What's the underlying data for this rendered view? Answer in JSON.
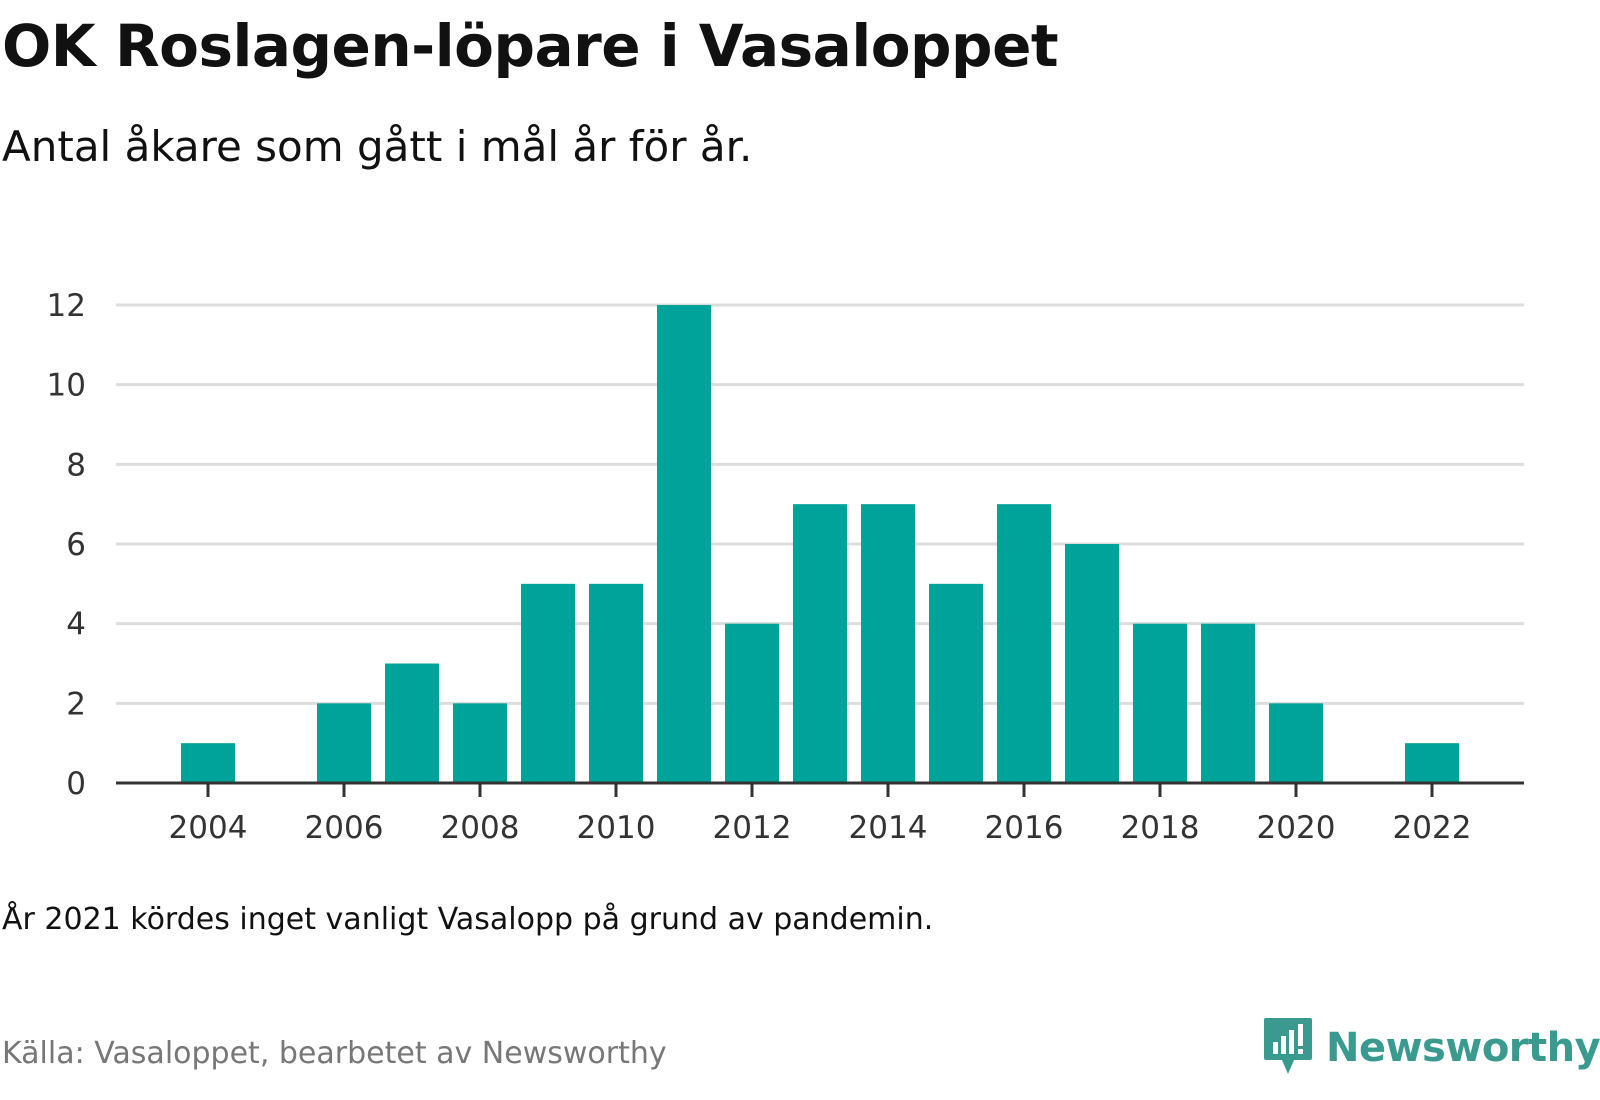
{
  "header": {
    "title": "OK Roslagen-löpare i Vasaloppet",
    "subtitle": "Antal åkare som gått i mål år för år."
  },
  "footer": {
    "note": "År 2021 kördes inget vanligt Vasalopp på grund av pandemin.",
    "source": "Källa: Vasaloppet, bearbetet av Newsworthy",
    "brand": "Newsworthy"
  },
  "icons": {
    "brand_logo": "newsworthy-logo-icon"
  },
  "colors": {
    "bar": "#00a39a",
    "grid": "#dddddd",
    "axis": "#333333",
    "brand": "#3a9a90",
    "source": "#777777"
  },
  "chart_data": {
    "type": "bar",
    "categories": [
      2004,
      2005,
      2006,
      2007,
      2008,
      2009,
      2010,
      2011,
      2012,
      2013,
      2014,
      2015,
      2016,
      2017,
      2018,
      2019,
      2020,
      2021,
      2022
    ],
    "values": [
      1,
      0,
      2,
      3,
      2,
      5,
      5,
      12,
      4,
      7,
      7,
      5,
      7,
      6,
      4,
      4,
      2,
      0,
      1
    ],
    "x_tick_labels": [
      "2004",
      "2006",
      "2008",
      "2010",
      "2012",
      "2014",
      "2016",
      "2018",
      "2020",
      "2022"
    ],
    "y_tick_labels": [
      "0",
      "2",
      "4",
      "6",
      "8",
      "10",
      "12"
    ],
    "ylim": [
      0,
      12
    ],
    "grid": true,
    "legend": "none"
  }
}
